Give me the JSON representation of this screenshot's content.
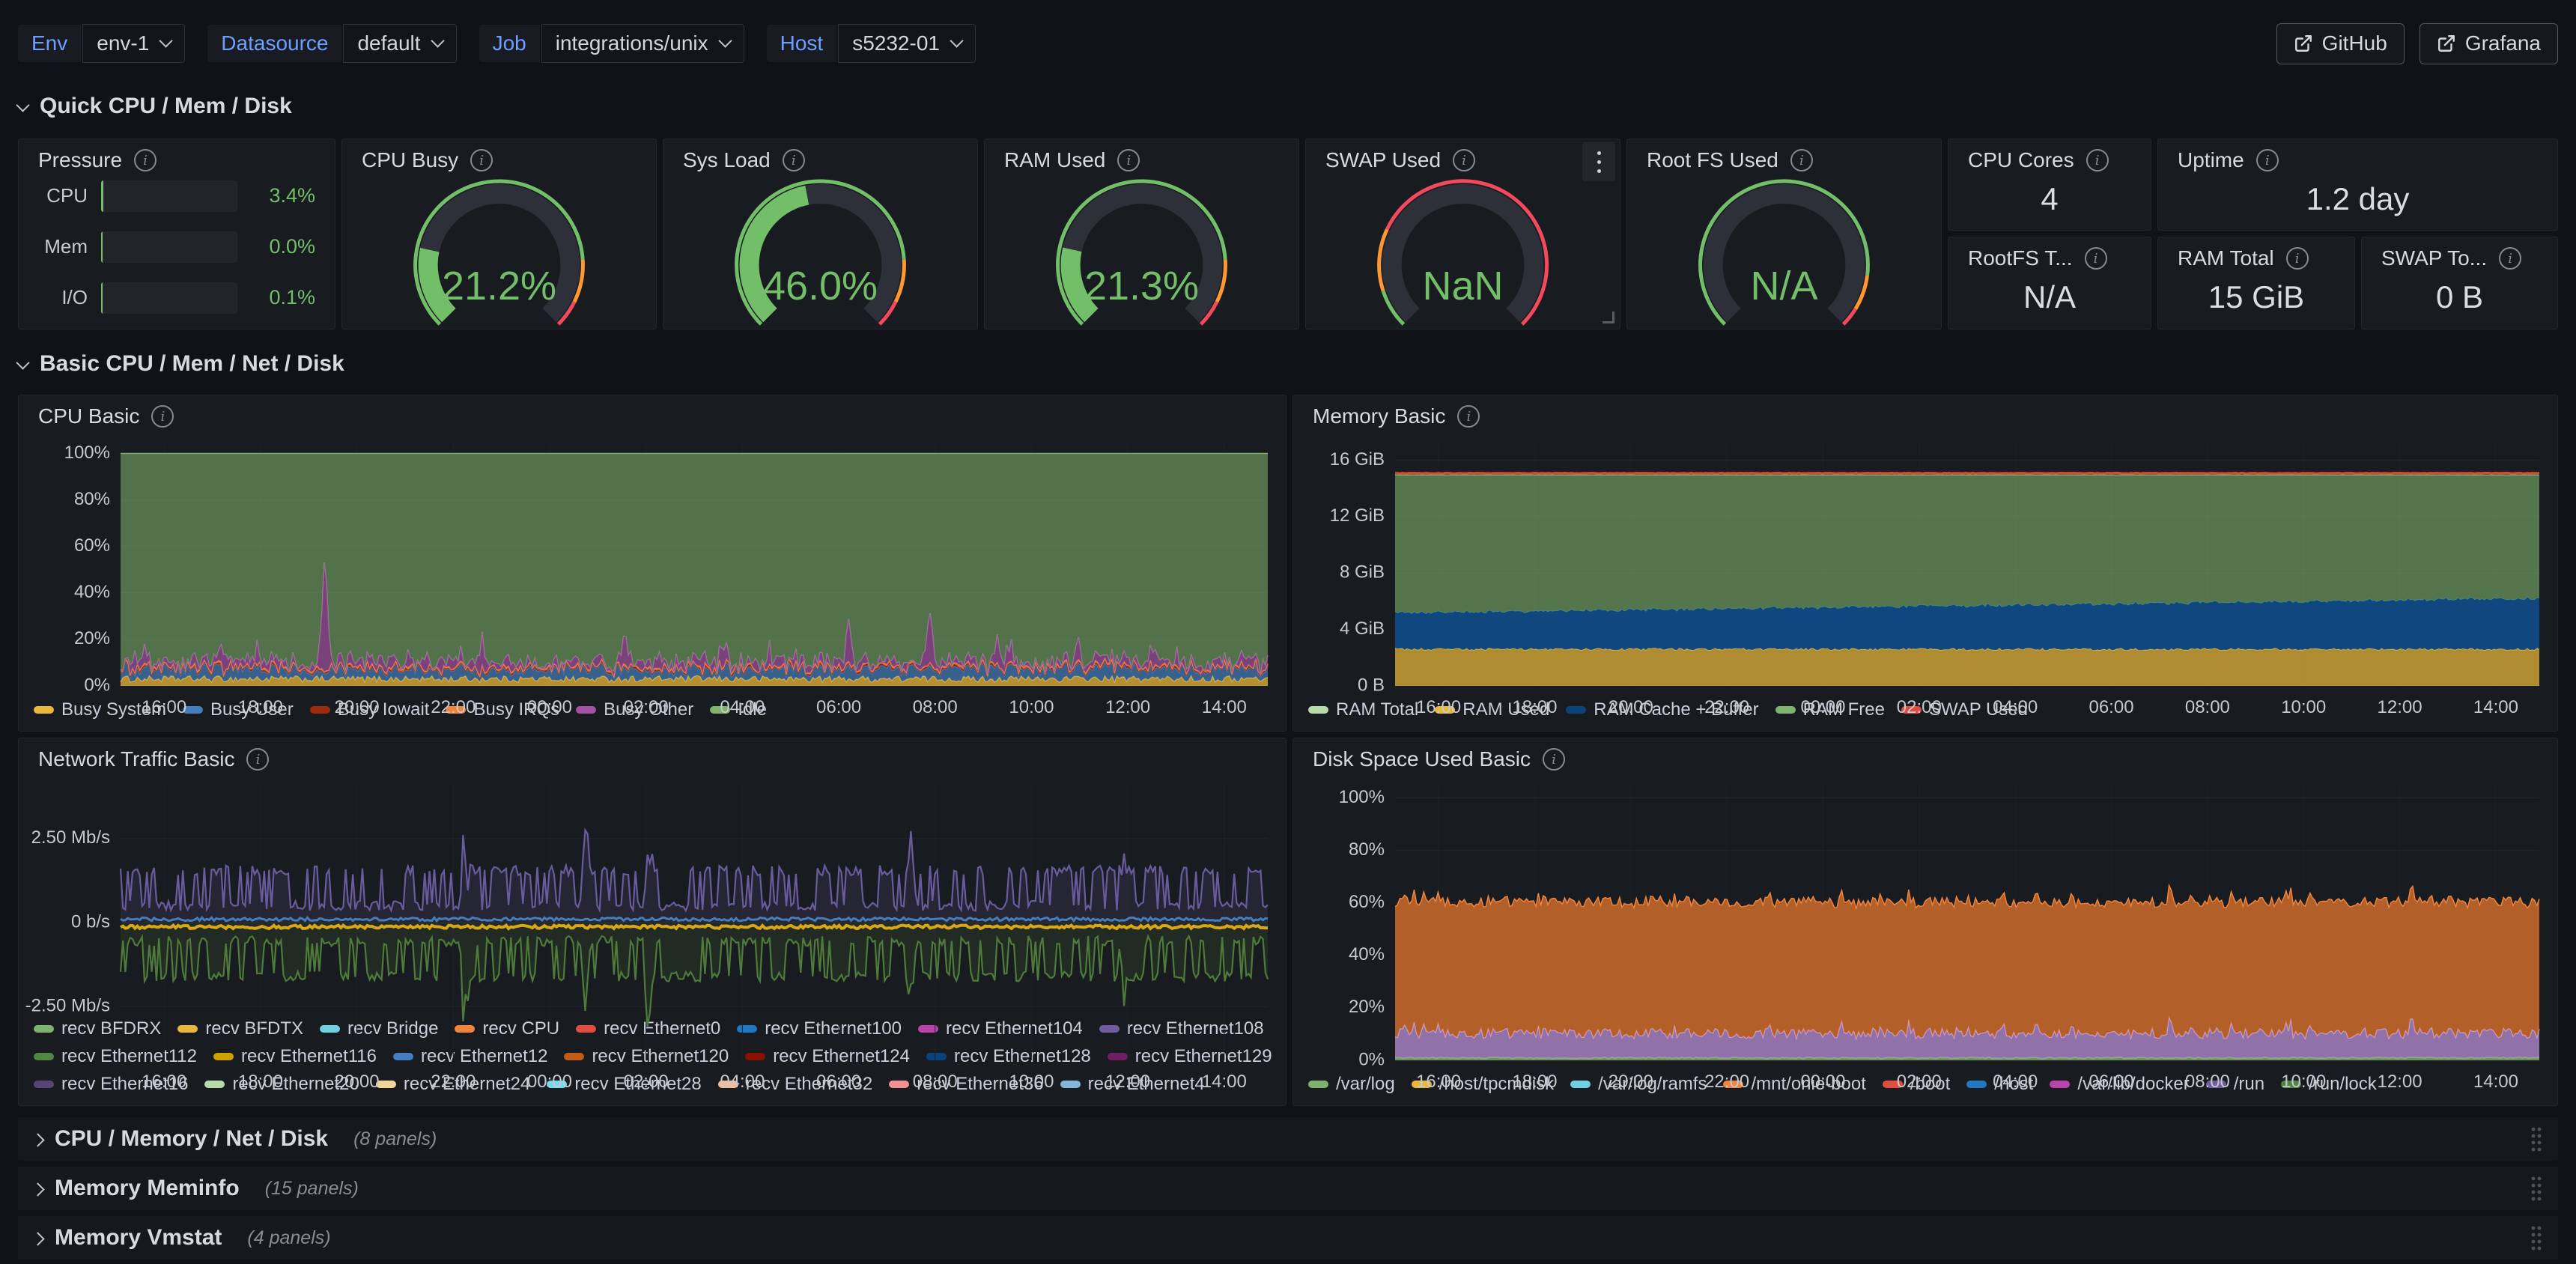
{
  "nav": {
    "variables": [
      {
        "label": "Env",
        "value": "env-1"
      },
      {
        "label": "Datasource",
        "value": "default"
      },
      {
        "label": "Job",
        "value": "integrations/unix"
      },
      {
        "label": "Host",
        "value": "s5232-01"
      }
    ],
    "links": [
      {
        "label": "GitHub"
      },
      {
        "label": "Grafana"
      }
    ]
  },
  "sections": {
    "quick": {
      "title": "Quick CPU / Mem / Disk"
    },
    "basic": {
      "title": "Basic CPU / Mem / Net / Disk"
    }
  },
  "pressure": {
    "title": "Pressure",
    "rows": [
      {
        "label": "CPU",
        "value": "3.4%",
        "pct": 3.4
      },
      {
        "label": "Mem",
        "value": "0.0%",
        "pct": 0.0
      },
      {
        "label": "I/O",
        "value": "0.1%",
        "pct": 0.1
      }
    ]
  },
  "gauges": [
    {
      "title": "CPU Busy",
      "value": "21.2%",
      "pct": 21.2,
      "thresholds": [
        [
          "#73BF69",
          0.82
        ],
        [
          "#FF9830",
          0.93
        ],
        [
          "#F2495C",
          1
        ]
      ]
    },
    {
      "title": "Sys Load",
      "value": "46.0%",
      "pct": 46.0,
      "thresholds": [
        [
          "#73BF69",
          0.82
        ],
        [
          "#FF9830",
          0.93
        ],
        [
          "#F2495C",
          1
        ]
      ]
    },
    {
      "title": "RAM Used",
      "value": "21.3%",
      "pct": 21.3,
      "thresholds": [
        [
          "#73BF69",
          0.82
        ],
        [
          "#FF9830",
          0.93
        ],
        [
          "#F2495C",
          1
        ]
      ]
    },
    {
      "title": "SWAP Used",
      "value": "NaN",
      "pct": null,
      "thresholds": [
        [
          "#73BF69",
          0.1
        ],
        [
          "#FF9830",
          0.26
        ],
        [
          "#F2495C",
          1
        ]
      ]
    },
    {
      "title": "Root FS Used",
      "value": "N/A",
      "pct": null,
      "thresholds": [
        [
          "#73BF69",
          0.86
        ],
        [
          "#FF9830",
          0.95
        ],
        [
          "#F2495C",
          1
        ]
      ]
    }
  ],
  "stats": [
    {
      "title": "CPU Cores",
      "value": "4"
    },
    {
      "title": "Uptime",
      "value": "1.2 day"
    },
    {
      "title": "RootFS T...",
      "value": "N/A"
    },
    {
      "title": "RAM Total",
      "value": "15 GiB"
    },
    {
      "title": "SWAP To...",
      "value": "0 B"
    }
  ],
  "collapsed_rows": [
    {
      "title": "CPU / Memory / Net / Disk",
      "count": "(8 panels)"
    },
    {
      "title": "Memory Meminfo",
      "count": "(15 panels)"
    },
    {
      "title": "Memory Vmstat",
      "count": "(4 panels)"
    }
  ],
  "chart_data": [
    {
      "id": "cpu-basic",
      "type": "stacked",
      "title": "CPU Basic",
      "ylim": [
        0,
        105
      ],
      "yticks": [
        {
          "v": 0,
          "label": "0%"
        },
        {
          "v": 20,
          "label": "20%"
        },
        {
          "v": 40,
          "label": "40%"
        },
        {
          "v": 60,
          "label": "60%"
        },
        {
          "v": 80,
          "label": "80%"
        },
        {
          "v": 100,
          "label": "100%"
        }
      ],
      "xticks": [
        "16:00",
        "18:00",
        "20:00",
        "22:00",
        "00:00",
        "02:00",
        "04:00",
        "06:00",
        "08:00",
        "10:00",
        "12:00",
        "14:00"
      ],
      "series": [
        {
          "name": "Busy System",
          "color": "#EAB839",
          "base": 3.0,
          "jitter": 1.4,
          "fo": 0.75
        },
        {
          "name": "Busy User",
          "color": "#447EBC",
          "base": 4.2,
          "jitter": 2.4,
          "fo": 0.7
        },
        {
          "name": "Busy Iowait",
          "color": "#9E2B10",
          "base": 0.5,
          "jitter": 0.5,
          "fo": 0.8
        },
        {
          "name": "Busy IRQs",
          "color": "#EF843C",
          "base": 0.6,
          "jitter": 0.4,
          "fo": 0.8
        },
        {
          "name": "Busy Other",
          "color": "#A352A3",
          "base": 2.2,
          "jitter": 2.8,
          "burst": [
            0.06,
            8
          ],
          "spikes": [
            [
              0.09,
              9
            ],
            [
              0.178,
              46
            ],
            [
              0.315,
              12
            ],
            [
              0.44,
              9
            ],
            [
              0.525,
              7
            ],
            [
              0.635,
              15
            ],
            [
              0.705,
              21
            ],
            [
              0.765,
              9
            ],
            [
              0.9,
              6
            ]
          ],
          "fo": 0.7
        },
        {
          "name": "Idle",
          "color": "#7EB26D",
          "fill_to": 100,
          "fo": 0.58
        }
      ],
      "legend": [
        {
          "label": "Busy System",
          "color": "#EAB839"
        },
        {
          "label": "Busy User",
          "color": "#447EBC"
        },
        {
          "label": "Busy Iowait",
          "color": "#9E2B10"
        },
        {
          "label": "Busy IRQs",
          "color": "#EF843C"
        },
        {
          "label": "Busy Other",
          "color": "#A352A3"
        },
        {
          "label": "Idle",
          "color": "#7EB26D"
        }
      ]
    },
    {
      "id": "memory-basic",
      "type": "stacked",
      "title": "Memory Basic",
      "ylim": [
        0,
        17.3
      ],
      "yticks": [
        {
          "v": 0,
          "label": "0 B"
        },
        {
          "v": 4,
          "label": "4 GiB"
        },
        {
          "v": 8,
          "label": "8 GiB"
        },
        {
          "v": 12,
          "label": "12 GiB"
        },
        {
          "v": 16,
          "label": "16 GiB"
        }
      ],
      "xticks": [
        "16:00",
        "18:00",
        "20:00",
        "22:00",
        "00:00",
        "02:00",
        "04:00",
        "06:00",
        "08:00",
        "10:00",
        "12:00",
        "14:00"
      ],
      "series": [
        {
          "name": "RAM Used",
          "color": "#EAB839",
          "base": 2.6,
          "jitter": 0.08,
          "fo": 0.72
        },
        {
          "name": "RAM Cache + Buffer",
          "color": "#0E4D8C",
          "base": 2.55,
          "end": 3.6,
          "jitter": 0.06,
          "fo": 0.88
        },
        {
          "name": "RAM Free",
          "color": "#7EB26D",
          "fill_to": 14.95,
          "fo": 0.6
        },
        {
          "name": "RAM Total",
          "type": "topline",
          "y": 15.08,
          "color": "#E0462E",
          "width": 3
        }
      ],
      "legend": [
        {
          "label": "RAM Total",
          "color": "#B7DBAB"
        },
        {
          "label": "RAM Used",
          "color": "#EAB839"
        },
        {
          "label": "RAM Cache + Buffer",
          "color": "#0A437C"
        },
        {
          "label": "RAM Free",
          "color": "#7EB26D"
        },
        {
          "label": "SWAP Used",
          "color": "#E24D42"
        }
      ]
    },
    {
      "id": "network-traffic-basic",
      "type": "lines",
      "title": "Network Traffic Basic",
      "ylim": [
        -4.1,
        4.1
      ],
      "yticks": [
        {
          "v": 2.5,
          "label": "2.50 Mb/s"
        },
        {
          "v": 0,
          "label": "0 b/s"
        },
        {
          "v": -2.5,
          "label": "-2.50 Mb/s"
        }
      ],
      "xticks": [
        "16:00",
        "18:00",
        "20:00",
        "22:00",
        "00:00",
        "02:00",
        "04:00",
        "06:00",
        "08:00",
        "10:00",
        "12:00",
        "14:00"
      ],
      "series": [
        {
          "name": "recv",
          "type": "osc",
          "color": "#6A5B9E",
          "lo": 0.5,
          "hi": 1.55,
          "fill": 0.16,
          "spikes": [
            [
              0.3,
              1.5
            ],
            [
              0.405,
              2.1
            ],
            [
              0.46,
              1.6
            ],
            [
              0.69,
              1.4
            ],
            [
              0.875,
              1.7
            ]
          ]
        },
        {
          "name": "send",
          "type": "osc",
          "color": "#4E7B3A",
          "lo": -0.55,
          "hi": -1.6,
          "fill": 0.16,
          "spikes": [
            [
              0.3,
              -1.6
            ],
            [
              0.405,
              -2.0
            ],
            [
              0.46,
              -1.5
            ],
            [
              0.69,
              -1.5
            ],
            [
              0.875,
              -1.8
            ]
          ]
        },
        {
          "name": "flat-blue",
          "type": "flat",
          "color": "#447EBC",
          "y": 0.1,
          "jitter": 0.05,
          "width": 3
        },
        {
          "name": "flat-yellow",
          "type": "flat",
          "color": "#D9A818",
          "y": -0.13,
          "jitter": 0.05,
          "width": 4
        }
      ],
      "legend": [
        {
          "label": "recv BFDRX",
          "color": "#7EB26D"
        },
        {
          "label": "recv BFDTX",
          "color": "#EAB839"
        },
        {
          "label": "recv Bridge",
          "color": "#6ED0E0"
        },
        {
          "label": "recv CPU",
          "color": "#EF843C"
        },
        {
          "label": "recv Ethernet0",
          "color": "#E24D42"
        },
        {
          "label": "recv Ethernet100",
          "color": "#1F78C1"
        },
        {
          "label": "recv Ethernet104",
          "color": "#BA43A9"
        },
        {
          "label": "recv Ethernet108",
          "color": "#705DA0"
        },
        {
          "label": "recv Ethernet112",
          "color": "#508642"
        },
        {
          "label": "recv Ethernet116",
          "color": "#CCA300"
        },
        {
          "label": "recv Ethernet12",
          "color": "#447EBC"
        },
        {
          "label": "recv Ethernet120",
          "color": "#C15C17"
        },
        {
          "label": "recv Ethernet124",
          "color": "#890F02"
        },
        {
          "label": "recv Ethernet128",
          "color": "#0A437C"
        },
        {
          "label": "recv Ethernet129",
          "color": "#6D1F62"
        },
        {
          "label": "recv Ethernet16",
          "color": "#584477"
        },
        {
          "label": "recv Ethernet20",
          "color": "#B7DBAB"
        },
        {
          "label": "recv Ethernet24",
          "color": "#F4D598"
        },
        {
          "label": "recv Ethernet28",
          "color": "#70DBED"
        },
        {
          "label": "recv Ethernet32",
          "color": "#F9BA8F"
        },
        {
          "label": "recv Ethernet36",
          "color": "#F29191"
        },
        {
          "label": "recv Ethernet4",
          "color": "#82B5D8"
        }
      ]
    },
    {
      "id": "disk-space-used-basic",
      "type": "stacked",
      "title": "Disk Space Used Basic",
      "ylim": [
        0,
        105
      ],
      "yticks": [
        {
          "v": 0,
          "label": "0%"
        },
        {
          "v": 20,
          "label": "20%"
        },
        {
          "v": 40,
          "label": "40%"
        },
        {
          "v": 60,
          "label": "60%"
        },
        {
          "v": 80,
          "label": "80%"
        },
        {
          "v": 100,
          "label": "100%"
        }
      ],
      "xticks": [
        "16:00",
        "18:00",
        "20:00",
        "22:00",
        "00:00",
        "02:00",
        "04:00",
        "06:00",
        "08:00",
        "10:00",
        "12:00",
        "14:00"
      ],
      "series": [
        {
          "name": "bottom-strip",
          "color": "#7EB26D",
          "base": 0.9,
          "jitter": 0.25,
          "fo": 0.8,
          "width": 2
        },
        {
          "name": "lavender-band",
          "color": "#B48BD0",
          "base": 9.5,
          "jitter": 2.0,
          "burst": [
            0.08,
            5
          ],
          "fo": 0.78,
          "stroke": "#CBA2E8"
        },
        {
          "name": "orange-band",
          "color": "#D9702C",
          "base": 50,
          "jitter": 0.6,
          "fo": 0.8,
          "stroke": "#EF843C"
        }
      ],
      "legend": [
        {
          "label": "/var/log",
          "color": "#7EB26D"
        },
        {
          "label": "/host/tpcmdisk",
          "color": "#EAB839"
        },
        {
          "label": "/var/log/ramfs",
          "color": "#6ED0E0"
        },
        {
          "label": "/mnt/onie-boot",
          "color": "#EF843C"
        },
        {
          "label": "/boot",
          "color": "#E24D42"
        },
        {
          "label": "/host",
          "color": "#1F78C1"
        },
        {
          "label": "/var/lib/docker",
          "color": "#BA43A9"
        },
        {
          "label": "/run",
          "color": "#705DA0"
        },
        {
          "label": "/run/lock",
          "color": "#508642"
        }
      ]
    }
  ]
}
